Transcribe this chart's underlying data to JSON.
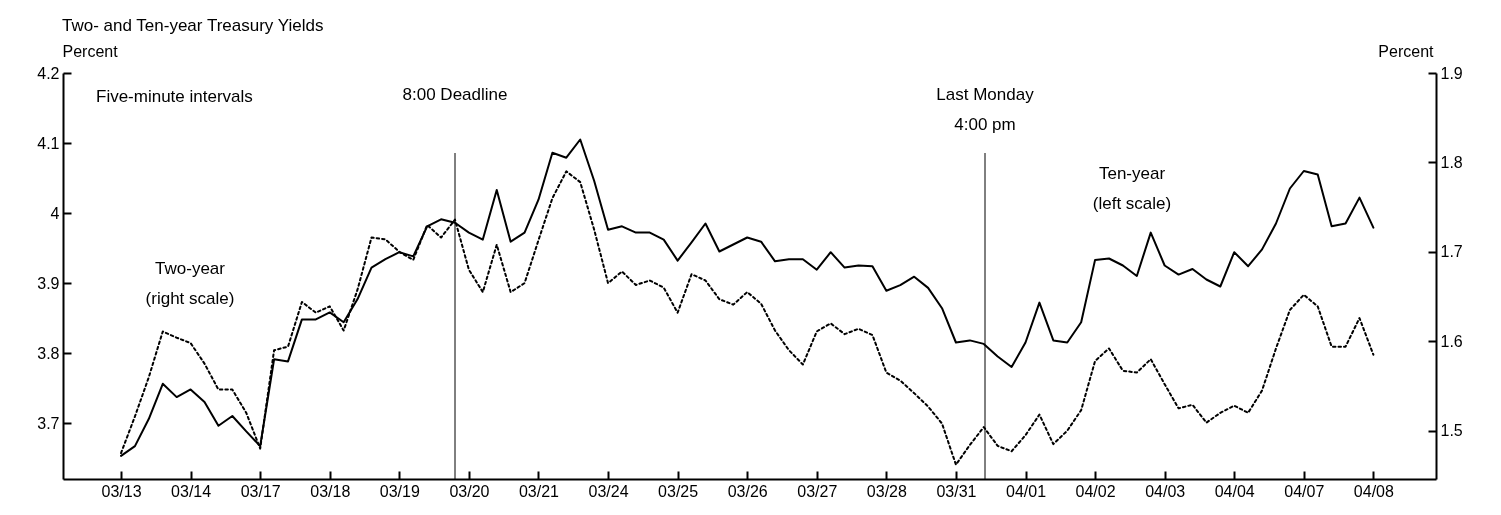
{
  "chart_data": {
    "type": "line",
    "title": "Two- and Ten-year Treasury Yields",
    "ylabel": "Percent",
    "y2label": "Percent",
    "categories": [
      "03/13",
      null,
      null,
      null,
      null,
      "03/14",
      null,
      null,
      null,
      null,
      "03/17",
      null,
      null,
      null,
      null,
      "03/18",
      null,
      null,
      null,
      null,
      "03/19",
      null,
      null,
      null,
      null,
      "03/20",
      null,
      null,
      null,
      null,
      "03/21",
      null,
      null,
      null,
      null,
      "03/24",
      null,
      null,
      null,
      null,
      "03/25",
      null,
      null,
      null,
      null,
      "03/26",
      null,
      null,
      null,
      null,
      "03/27",
      null,
      null,
      null,
      null,
      "03/28",
      null,
      null,
      null,
      null,
      "03/31",
      null,
      null,
      null,
      null,
      "04/01",
      null,
      null,
      null,
      null,
      "04/02",
      null,
      null,
      null,
      null,
      "04/03",
      null,
      null,
      null,
      null,
      "04/04",
      null,
      null,
      null,
      null,
      "04/07",
      null,
      null,
      null,
      null,
      "04/08"
    ],
    "ylim": [
      3.62,
      4.2
    ],
    "yticks": [
      3.7,
      3.8,
      3.9,
      4.0,
      4.1,
      4.2
    ],
    "y2lim": [
      1.446,
      1.9
    ],
    "y2ticks": [
      1.5,
      1.6,
      1.7,
      1.8,
      1.9
    ],
    "series": [
      {
        "color": "#000000",
        "line_style": "solid",
        "values": [
          3.653,
          3.667,
          3.706,
          3.756,
          3.737,
          3.748,
          3.73,
          3.696,
          3.71,
          3.688,
          3.667,
          3.791,
          3.788,
          3.848,
          3.848,
          3.858,
          3.844,
          3.877,
          3.922,
          3.934,
          3.944,
          3.938,
          3.981,
          3.991,
          3.986,
          3.972,
          3.962,
          4.033,
          3.959,
          3.972,
          4.019,
          4.086,
          4.079,
          4.105,
          4.046,
          3.976,
          3.981,
          3.972,
          3.972,
          3.962,
          3.932,
          3.958,
          3.985,
          3.945,
          3.955,
          3.965,
          3.959,
          3.931,
          3.934,
          3.934,
          3.919,
          3.944,
          3.922,
          3.925,
          3.924,
          3.889,
          3.897,
          3.909,
          3.893,
          3.864,
          3.815,
          3.818,
          3.813,
          3.795,
          3.78,
          3.815,
          3.872,
          3.818,
          3.815,
          3.844,
          3.933,
          3.935,
          3.925,
          3.91,
          3.972,
          3.925,
          3.912,
          3.92,
          3.905,
          3.895,
          3.944,
          3.924,
          3.948,
          3.985,
          4.035,
          4.06,
          4.055,
          3.981,
          3.985,
          4.022,
          3.979
        ]
      },
      {
        "color": "#000000",
        "line_style": "dotted",
        "axis": "y2",
        "values": [
          1.475,
          1.516,
          1.56,
          1.611,
          1.604,
          1.598,
          1.575,
          1.546,
          1.546,
          1.52,
          1.48,
          1.59,
          1.594,
          1.644,
          1.632,
          1.639,
          1.612,
          1.658,
          1.716,
          1.714,
          1.7,
          1.691,
          1.73,
          1.716,
          1.736,
          1.68,
          1.655,
          1.708,
          1.655,
          1.665,
          1.713,
          1.76,
          1.79,
          1.778,
          1.725,
          1.665,
          1.678,
          1.663,
          1.668,
          1.66,
          1.632,
          1.675,
          1.668,
          1.647,
          1.641,
          1.655,
          1.642,
          1.612,
          1.59,
          1.574,
          1.611,
          1.62,
          1.608,
          1.614,
          1.607,
          1.565,
          1.556,
          1.542,
          1.527,
          1.508,
          1.462,
          1.484,
          1.504,
          1.483,
          1.477,
          1.495,
          1.518,
          1.485,
          1.5,
          1.523,
          1.578,
          1.592,
          1.567,
          1.565,
          1.58,
          1.552,
          1.525,
          1.529,
          1.509,
          1.52,
          1.528,
          1.52,
          1.545,
          1.592,
          1.635,
          1.652,
          1.639,
          1.594,
          1.594,
          1.626,
          1.585
        ]
      }
    ],
    "annotations": [
      "Five-minute intervals",
      "8:00 Deadline",
      "Two-year\n(right scale)",
      "Last Monday\n4:00 pm",
      "Ten-year\n(left scale)"
    ]
  }
}
